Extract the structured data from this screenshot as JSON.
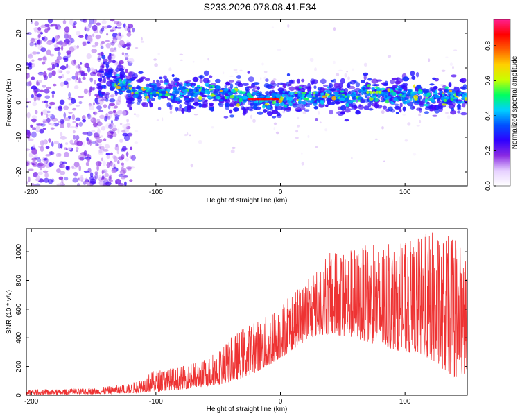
{
  "title": "S233.2026.078.08.41.E34",
  "chart_data": [
    {
      "type": "heatmap",
      "xlabel": "Height of straight line (km)",
      "ylabel": "Frequency (Hz)",
      "xlim": [
        -204,
        150
      ],
      "ylim": [
        -24,
        24
      ],
      "xticks": [
        -200,
        -100,
        0,
        100
      ],
      "yticks": [
        -20,
        -10,
        0,
        10,
        20
      ],
      "colorbar": {
        "label": "Normalized spectral amplitude",
        "range": [
          0,
          0.95
        ],
        "ticks": [
          "0.0",
          "0.2",
          "0.4",
          "0.6",
          "0.8"
        ],
        "colors": [
          "#ffffff",
          "#e6d0ff",
          "#8a2be2",
          "#2f00ff",
          "#0050ff",
          "#00d0ff",
          "#00ff60",
          "#c8ff00",
          "#ffd000",
          "#ff6000",
          "#ff0000",
          "#ff2090"
        ]
      },
      "ridge_center_hz": [
        [
          -140,
          7
        ],
        [
          -120,
          4
        ],
        [
          -100,
          3
        ],
        [
          -80,
          3
        ],
        [
          -60,
          3
        ],
        [
          -40,
          2
        ],
        [
          -20,
          1
        ],
        [
          0,
          1
        ],
        [
          20,
          1.5
        ],
        [
          40,
          2.5
        ],
        [
          60,
          1
        ],
        [
          70,
          3
        ],
        [
          80,
          2
        ],
        [
          100,
          2
        ],
        [
          120,
          2
        ],
        [
          150,
          2
        ]
      ]
    },
    {
      "type": "line",
      "xlabel": "Height of straight line (km)",
      "ylabel": "SNR (10 * v/v)",
      "xlim": [
        -204,
        150
      ],
      "ylim": [
        0,
        1160
      ],
      "xticks": [
        -200,
        -100,
        0,
        100
      ],
      "yticks": [
        0,
        200,
        400,
        600,
        800,
        1000
      ],
      "series": [
        {
          "name": "SNR",
          "color": "#ee3333",
          "envelope_x": [
            -204,
            -180,
            -150,
            -120,
            -100,
            -80,
            -60,
            -45,
            -30,
            -10,
            0,
            10,
            20,
            30,
            40,
            60,
            80,
            100,
            120,
            140,
            150
          ],
          "envelope_low": [
            5,
            5,
            8,
            15,
            25,
            40,
            60,
            80,
            120,
            200,
            260,
            320,
            380,
            420,
            420,
            400,
            340,
            300,
            250,
            120,
            150
          ],
          "envelope_high": [
            40,
            40,
            50,
            80,
            180,
            200,
            250,
            360,
            480,
            560,
            650,
            700,
            800,
            900,
            1000,
            1040,
            1050,
            1060,
            1150,
            1100,
            960
          ]
        }
      ]
    }
  ]
}
